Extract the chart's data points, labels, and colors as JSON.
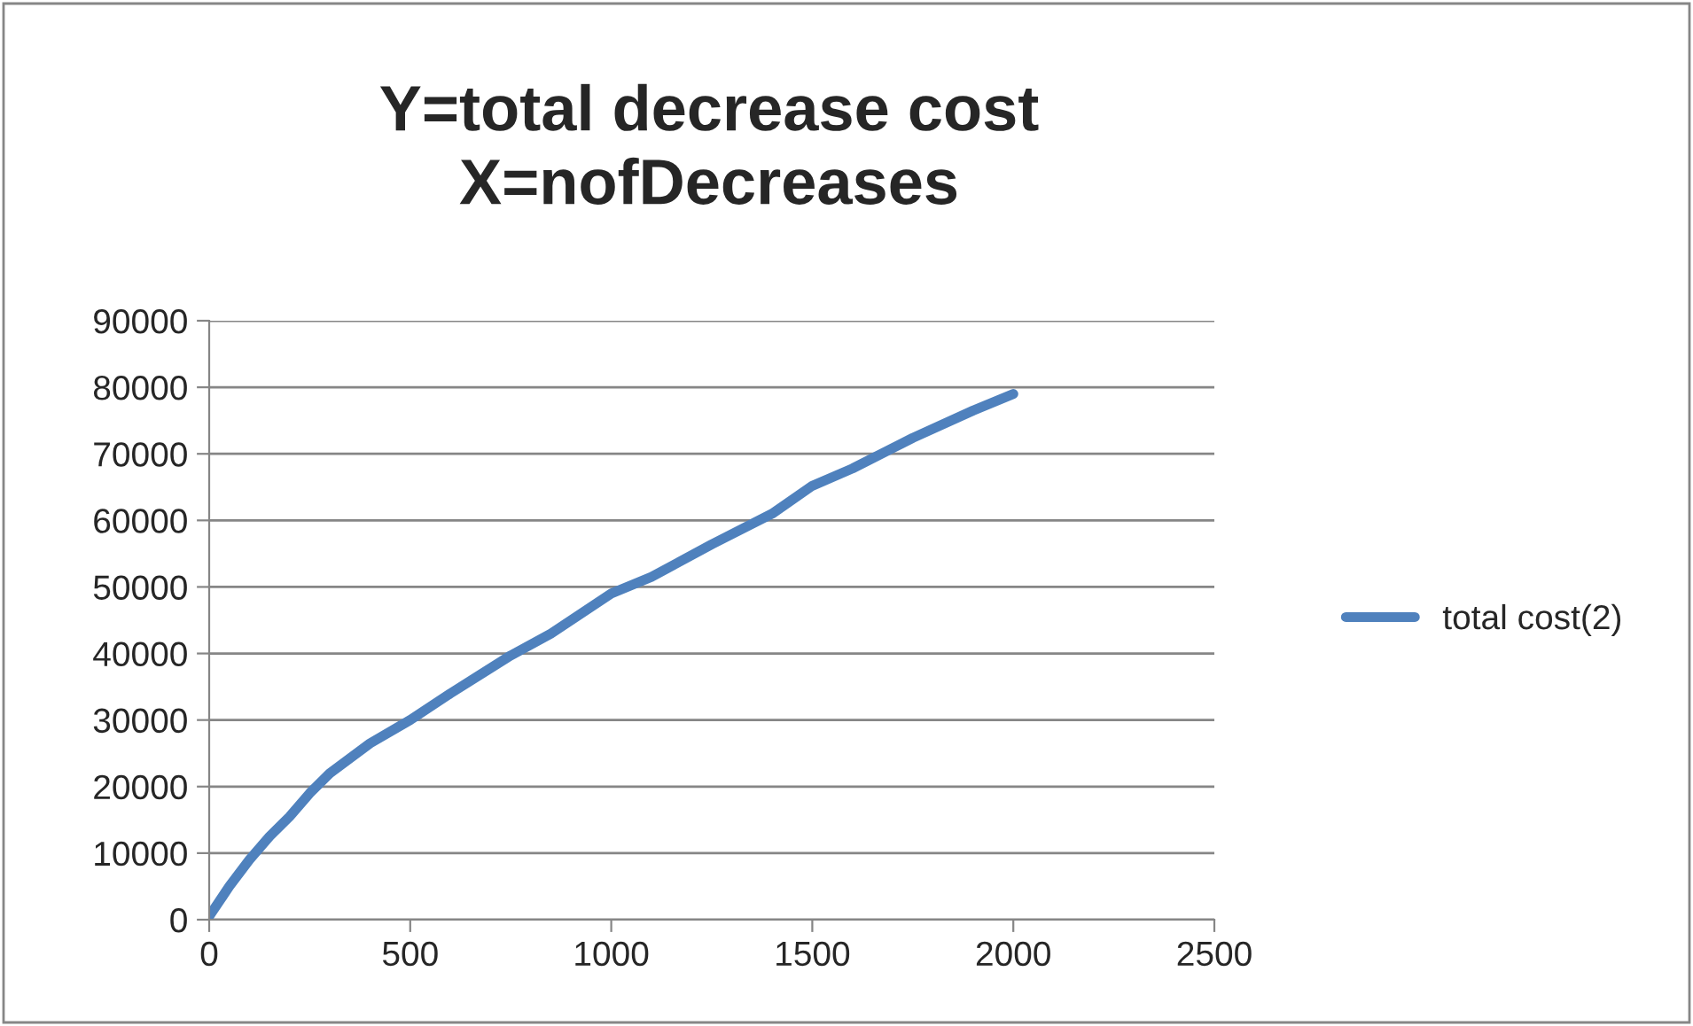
{
  "chart_data": {
    "type": "line",
    "title": "Y=total decrease cost\nX=nofDecreases",
    "series": [
      {
        "name": "total cost(2)",
        "color": "#4f81bd",
        "x": [
          0,
          50,
          100,
          150,
          200,
          250,
          300,
          400,
          500,
          600,
          750,
          850,
          1000,
          1100,
          1250,
          1400,
          1500,
          1600,
          1750,
          1900,
          2000
        ],
        "values": [
          500,
          5000,
          9000,
          12500,
          15500,
          19000,
          22000,
          26500,
          30000,
          34000,
          39700,
          43000,
          49000,
          51500,
          56400,
          61000,
          65200,
          67800,
          72400,
          76500,
          79000
        ]
      }
    ],
    "xlim": [
      0,
      2500
    ],
    "xticks": [
      0,
      500,
      1000,
      1500,
      2000,
      2500
    ],
    "ylim": [
      0,
      90000
    ],
    "yticks": [
      0,
      10000,
      20000,
      30000,
      40000,
      50000,
      60000,
      70000,
      80000,
      90000
    ],
    "grid": "y",
    "legend": "right",
    "marker": "none",
    "line_style": "solid"
  }
}
